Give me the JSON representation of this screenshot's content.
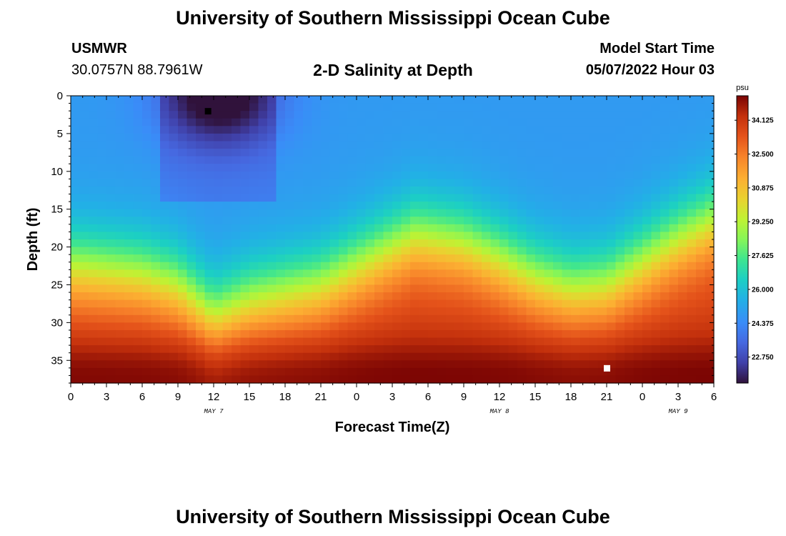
{
  "header": {
    "title": "University of Southern Mississippi Ocean Cube",
    "station": "USMWR",
    "coords": "30.0757N  88.7961W",
    "plot_title": "2-D Salinity at Depth",
    "model_label": "Model Start Time",
    "model_time": "05/07/2022 Hour 03"
  },
  "footer": {
    "title": "University of Southern Mississippi Ocean Cube"
  },
  "chart_data": {
    "type": "heatmap",
    "title": "2-D Salinity at Depth",
    "xlabel": "Forecast Time(Z)",
    "ylabel": "Depth (ft)",
    "x_range_hours": [
      0,
      54
    ],
    "x_ticks": [
      "0",
      "3",
      "6",
      "9",
      "12",
      "15",
      "18",
      "21",
      "0",
      "3",
      "6",
      "9",
      "12",
      "15",
      "18",
      "21",
      "0",
      "3",
      "6"
    ],
    "date_labels": [
      {
        "label": "MAY 7",
        "at_hour": 12
      },
      {
        "label": "MAY 8",
        "at_hour": 36
      },
      {
        "label": "MAY 9",
        "at_hour": 51
      }
    ],
    "ylim": [
      0,
      38
    ],
    "y_ticks": [
      0,
      5,
      10,
      15,
      20,
      25,
      30,
      35
    ],
    "colorbar": {
      "unit": "psu",
      "range": [
        21.5,
        35.3
      ],
      "ticks": [
        "34.125",
        "32.500",
        "30.875",
        "29.250",
        "27.625",
        "26.000",
        "24.375",
        "22.750"
      ]
    },
    "halocline_depth_ft": [
      {
        "hour": 0,
        "depth": 22.5
      },
      {
        "hour": 6,
        "depth": 23.5
      },
      {
        "hour": 9,
        "depth": 25
      },
      {
        "hour": 12,
        "depth": 29
      },
      {
        "hour": 15,
        "depth": 27
      },
      {
        "hour": 18,
        "depth": 26
      },
      {
        "hour": 21,
        "depth": 25
      },
      {
        "hour": 24,
        "depth": 22.5
      },
      {
        "hour": 27,
        "depth": 20
      },
      {
        "hour": 29,
        "depth": 18.5
      },
      {
        "hour": 33,
        "depth": 19.5
      },
      {
        "hour": 36,
        "depth": 21.5
      },
      {
        "hour": 39,
        "depth": 24
      },
      {
        "hour": 42,
        "depth": 25.5
      },
      {
        "hour": 45,
        "depth": 25
      },
      {
        "hour": 48,
        "depth": 22
      },
      {
        "hour": 51,
        "depth": 19
      },
      {
        "hour": 54,
        "depth": 16.5
      }
    ],
    "markers": [
      {
        "name": "min",
        "hour": 11.5,
        "depth": 2,
        "color": "#000000"
      },
      {
        "name": "max",
        "hour": 45,
        "depth": 36,
        "color": "#ffffff"
      }
    ]
  }
}
